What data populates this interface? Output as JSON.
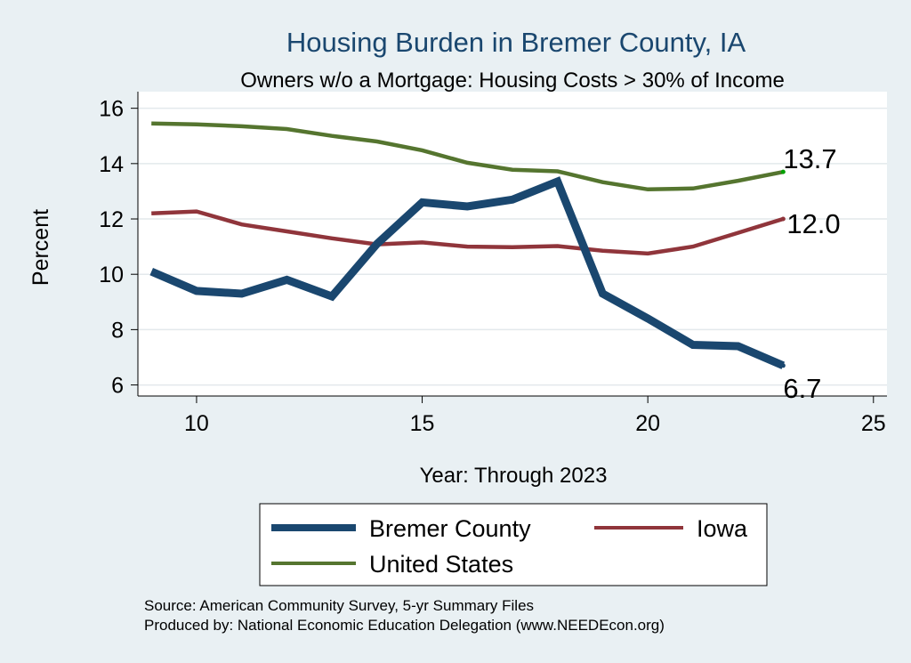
{
  "chart_data": {
    "type": "line",
    "title": "Housing Burden in Bremer County, IA",
    "subtitle": "Owners w/o a Mortgage: Housing Costs > 30% of Income",
    "xlabel": "Year: Through 2023",
    "ylabel": "Percent",
    "xlim": [
      8.7,
      25.3
    ],
    "ylim": [
      5.6,
      16.6
    ],
    "xticks": [
      10,
      15,
      20,
      25
    ],
    "yticks": [
      6,
      8,
      10,
      12,
      14,
      16
    ],
    "grid": true,
    "legend_position": "bottom",
    "series": [
      {
        "name": "Bremer County",
        "color": "#1a476f",
        "x": [
          9,
          10,
          11,
          12,
          13,
          14,
          15,
          16,
          17,
          18,
          19,
          20,
          21,
          22,
          23
        ],
        "values": [
          10.1,
          9.4,
          9.3,
          9.8,
          9.2,
          11.1,
          12.6,
          12.45,
          12.7,
          13.35,
          9.3,
          8.4,
          7.45,
          7.4,
          6.7
        ],
        "end_label": "6.7"
      },
      {
        "name": "Iowa",
        "color": "#90353b",
        "x": [
          9,
          10,
          11,
          12,
          13,
          14,
          15,
          16,
          17,
          18,
          19,
          20,
          21,
          22,
          23
        ],
        "values": [
          12.2,
          12.27,
          11.8,
          11.55,
          11.3,
          11.08,
          11.15,
          11.0,
          10.98,
          11.02,
          10.85,
          10.75,
          11.0,
          11.5,
          12.0
        ],
        "end_label": "12.0"
      },
      {
        "name": "United States",
        "color": "#55752f",
        "x": [
          9,
          10,
          11,
          12,
          13,
          14,
          15,
          16,
          17,
          18,
          19,
          20,
          21,
          22,
          23
        ],
        "values": [
          15.45,
          15.42,
          15.35,
          15.25,
          15.0,
          14.8,
          14.48,
          14.03,
          13.78,
          13.72,
          13.33,
          13.07,
          13.1,
          13.38,
          13.7
        ],
        "end_label": "13.7"
      }
    ],
    "source_note": "Source: American Community Survey, 5-yr Summary Files",
    "produced_note": "Produced by: National Economic Education Delegation (www.NEEDEcon.org)"
  }
}
